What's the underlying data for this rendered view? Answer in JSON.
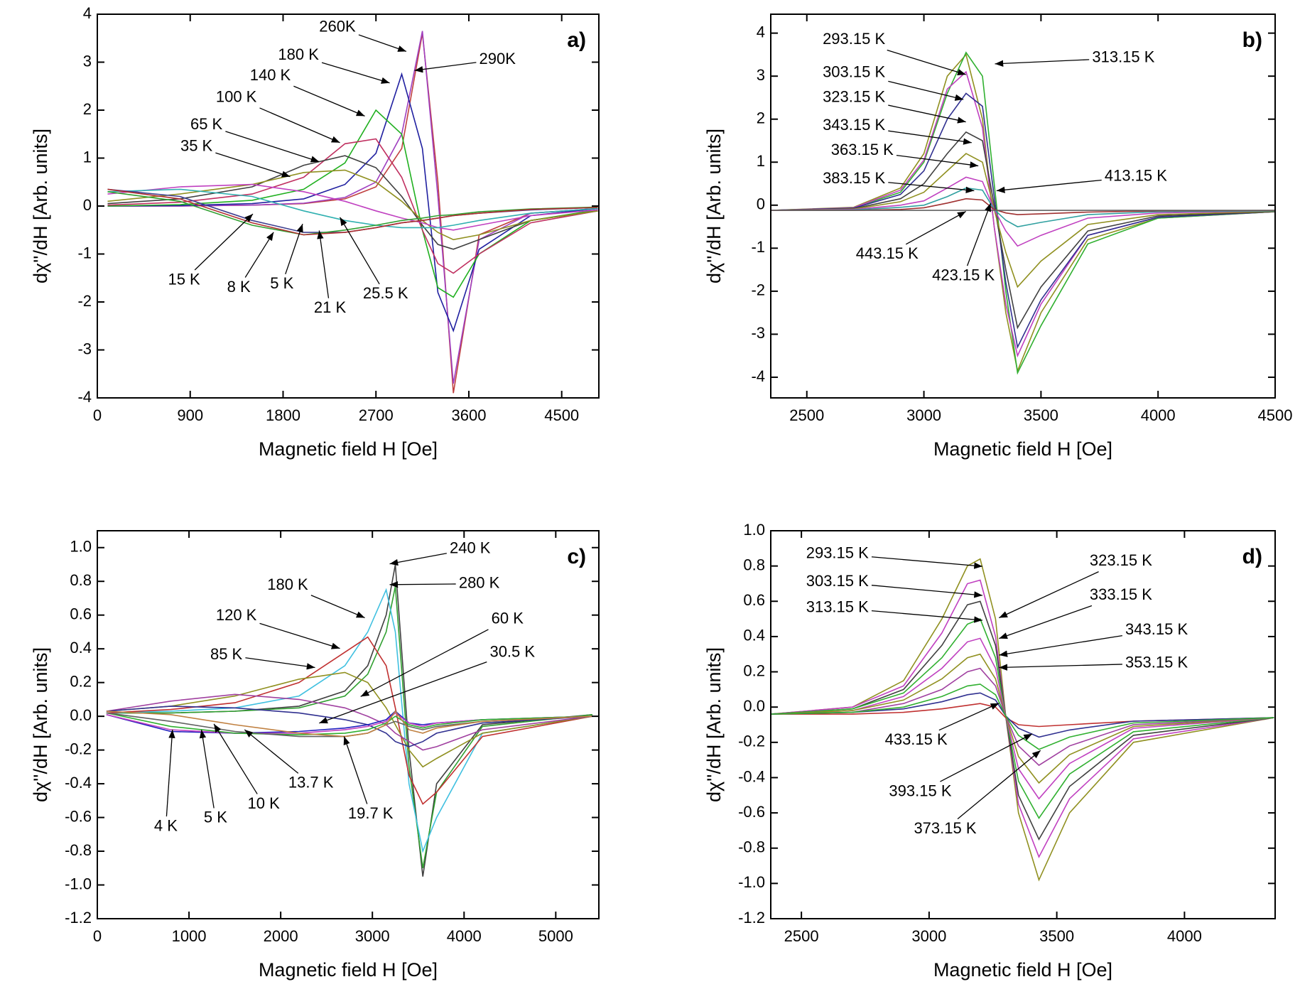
{
  "chart_data": [
    {
      "type": "line",
      "panel_label": "a)",
      "x_label": "Magnetic field H [Oe]",
      "y_label": "dχ''/dH [Arb. units]",
      "xlim": [
        0,
        4860
      ],
      "ylim": [
        -4,
        4
      ],
      "xticks": [
        0,
        900,
        1800,
        2700,
        3600,
        4500
      ],
      "yticks": [
        -4,
        -3,
        -2,
        -1,
        0,
        1,
        2,
        3,
        4
      ],
      "x": [
        100,
        800,
        1500,
        2000,
        2400,
        2700,
        2950,
        3150,
        3300,
        3450,
        3700,
        4200,
        4850
      ],
      "series": [
        {
          "name": "290K",
          "color": "#c04040",
          "values": [
            0,
            0,
            0.02,
            0.05,
            0.15,
            0.4,
            1.2,
            3.6,
            0.5,
            -3.9,
            -0.6,
            -0.15,
            -0.05
          ]
        },
        {
          "name": "260K",
          "color": "#a040c0",
          "values": [
            0,
            0,
            0.02,
            0.06,
            0.18,
            0.5,
            1.5,
            3.65,
            0.2,
            -3.7,
            -0.7,
            -0.15,
            -0.05
          ]
        },
        {
          "name": "180 K",
          "color": "#2020a0",
          "values": [
            0,
            0.01,
            0.05,
            0.15,
            0.45,
            1.1,
            2.75,
            1.2,
            -1.8,
            -2.6,
            -0.9,
            -0.2,
            -0.05
          ]
        },
        {
          "name": "140 K",
          "color": "#20b020",
          "values": [
            0,
            0.03,
            0.12,
            0.35,
            0.9,
            2.0,
            1.5,
            -0.5,
            -1.7,
            -1.9,
            -1.0,
            -0.3,
            -0.08
          ]
        },
        {
          "name": "100 K",
          "color": "#c03060",
          "values": [
            0.02,
            0.08,
            0.25,
            0.6,
            1.3,
            1.4,
            0.6,
            -0.5,
            -1.2,
            -1.4,
            -1.0,
            -0.35,
            -0.1
          ]
        },
        {
          "name": "65 K",
          "color": "#404040",
          "values": [
            0.05,
            0.15,
            0.4,
            0.85,
            1.05,
            0.8,
            0.2,
            -0.4,
            -0.8,
            -0.9,
            -0.7,
            -0.3,
            -0.1
          ]
        },
        {
          "name": "35 K",
          "color": "#909020",
          "values": [
            0.1,
            0.25,
            0.45,
            0.7,
            0.75,
            0.5,
            0.1,
            -0.3,
            -0.55,
            -0.7,
            -0.6,
            -0.3,
            -0.1
          ]
        },
        {
          "name": "25.5 K",
          "color": "#c040c0",
          "values": [
            0.25,
            0.4,
            0.45,
            0.3,
            0.1,
            -0.1,
            -0.25,
            -0.35,
            -0.45,
            -0.5,
            -0.4,
            -0.2,
            -0.08
          ]
        },
        {
          "name": "21 K",
          "color": "#30b0b0",
          "values": [
            0.3,
            0.35,
            0.2,
            -0.1,
            -0.3,
            -0.4,
            -0.45,
            -0.45,
            -0.45,
            -0.4,
            -0.3,
            -0.15,
            -0.05
          ]
        },
        {
          "name": "15 K",
          "color": "#404090",
          "values": [
            0.35,
            0.2,
            -0.3,
            -0.55,
            -0.55,
            -0.45,
            -0.35,
            -0.3,
            -0.25,
            -0.2,
            -0.15,
            -0.08,
            -0.03
          ]
        },
        {
          "name": "8 K",
          "color": "#30a030",
          "values": [
            0.3,
            0.1,
            -0.4,
            -0.6,
            -0.5,
            -0.4,
            -0.3,
            -0.25,
            -0.2,
            -0.18,
            -0.12,
            -0.06,
            -0.02
          ]
        },
        {
          "name": "5 K",
          "color": "#b03030",
          "values": [
            0.35,
            0.15,
            -0.35,
            -0.6,
            -0.55,
            -0.45,
            -0.35,
            -0.3,
            -0.25,
            -0.2,
            -0.15,
            -0.07,
            -0.03
          ]
        }
      ]
    },
    {
      "type": "line",
      "panel_label": "b)",
      "x_label": "Magnetic field H [Oe]",
      "y_label": "dχ''/dH [Arb. units]",
      "xlim": [
        2346,
        4500
      ],
      "ylim": [
        -4.48,
        4.44
      ],
      "xticks": [
        2500,
        3000,
        3500,
        4000,
        4500
      ],
      "yticks": [
        -4,
        -3,
        -2,
        -1,
        0,
        1,
        2,
        3,
        4
      ],
      "x": [
        2350,
        2700,
        2900,
        3000,
        3100,
        3180,
        3250,
        3300,
        3350,
        3400,
        3500,
        3700,
        4000,
        4500
      ],
      "series": [
        {
          "name": "293.15 K",
          "color": "#909020",
          "values": [
            -0.12,
            -0.05,
            0.4,
            1.2,
            3.0,
            3.5,
            2.0,
            -0.5,
            -2.5,
            -3.85,
            -2.5,
            -0.8,
            -0.3,
            -0.15
          ]
        },
        {
          "name": "313.15 K",
          "color": "#30b030",
          "values": [
            -0.12,
            -0.06,
            0.3,
            1.0,
            2.6,
            3.55,
            3.0,
            0.5,
            -2.0,
            -3.9,
            -2.8,
            -0.9,
            -0.3,
            -0.15
          ]
        },
        {
          "name": "303.15 K",
          "color": "#c040c0",
          "values": [
            -0.12,
            -0.06,
            0.35,
            1.05,
            2.7,
            3.1,
            1.8,
            -0.5,
            -2.3,
            -3.5,
            -2.3,
            -0.7,
            -0.28,
            -0.15
          ]
        },
        {
          "name": "323.15 K",
          "color": "#303090",
          "values": [
            -0.12,
            -0.07,
            0.25,
            0.8,
            2.0,
            2.6,
            2.3,
            0.2,
            -1.8,
            -3.3,
            -2.2,
            -0.7,
            -0.28,
            -0.15
          ]
        },
        {
          "name": "343.15 K",
          "color": "#404040",
          "values": [
            -0.12,
            -0.08,
            0.15,
            0.5,
            1.2,
            1.7,
            1.5,
            0,
            -1.5,
            -2.85,
            -1.9,
            -0.6,
            -0.25,
            -0.15
          ]
        },
        {
          "name": "363.15 K",
          "color": "#909020",
          "values": [
            -0.12,
            -0.09,
            0.08,
            0.3,
            0.8,
            1.2,
            1.0,
            -0.1,
            -1.1,
            -1.9,
            -1.3,
            -0.45,
            -0.22,
            -0.14
          ]
        },
        {
          "name": "383.15 K",
          "color": "#c040c0",
          "values": [
            -0.12,
            -0.1,
            0,
            0.1,
            0.4,
            0.65,
            0.55,
            -0.1,
            -0.6,
            -0.95,
            -0.7,
            -0.3,
            -0.18,
            -0.13
          ]
        },
        {
          "name": "413.15 K",
          "color": "#30a0a0",
          "values": [
            -0.12,
            -0.11,
            -0.05,
            0,
            0.2,
            0.4,
            0.35,
            -0.1,
            -0.35,
            -0.5,
            -0.4,
            -0.22,
            -0.15,
            -0.13
          ]
        },
        {
          "name": "423.15 K",
          "color": "#a03030",
          "values": [
            -0.12,
            -0.12,
            -0.1,
            -0.06,
            0.05,
            0.15,
            0.12,
            -0.1,
            -0.18,
            -0.22,
            -0.2,
            -0.16,
            -0.13,
            -0.12
          ]
        },
        {
          "name": "443.15 K",
          "color": "#606060",
          "values": [
            -0.12,
            -0.12,
            -0.12,
            -0.12,
            -0.12,
            -0.12,
            -0.12,
            -0.12,
            -0.12,
            -0.12,
            -0.12,
            -0.12,
            -0.12,
            -0.12
          ]
        }
      ]
    },
    {
      "type": "line",
      "panel_label": "c)",
      "x_label": "Magnetic field H [Oe]",
      "y_label": "dχ''/dH [Arb. units]",
      "xlim": [
        0,
        5470
      ],
      "ylim": [
        -1.2,
        1.1
      ],
      "xticks": [
        0,
        1000,
        2000,
        3000,
        4000,
        5000
      ],
      "yticks": [
        -1.2,
        {
          "value": -1,
          "label": "-1.0"
        },
        -0.8,
        -0.6,
        -0.4,
        -0.2,
        {
          "value": 0,
          "label": "0.0"
        },
        0.2,
        0.4,
        0.6,
        0.8,
        {
          "value": 1,
          "label": "1.0"
        }
      ],
      "x": [
        100,
        800,
        1500,
        2200,
        2700,
        2950,
        3150,
        3250,
        3400,
        3550,
        3700,
        4200,
        5400
      ],
      "series": [
        {
          "name": "240 K",
          "color": "#404040",
          "values": [
            0.02,
            0.02,
            0.03,
            0.06,
            0.15,
            0.3,
            0.6,
            0.9,
            -0.2,
            -0.95,
            -0.4,
            -0.05,
            0.01
          ]
        },
        {
          "name": "280 K",
          "color": "#30a030",
          "values": [
            0.02,
            0.02,
            0.03,
            0.05,
            0.12,
            0.25,
            0.5,
            0.77,
            -0.3,
            -0.9,
            -0.45,
            -0.06,
            0.01
          ]
        },
        {
          "name": "180 K",
          "color": "#40c0e0",
          "values": [
            0.02,
            0.03,
            0.05,
            0.12,
            0.3,
            0.5,
            0.75,
            0.5,
            -0.4,
            -0.8,
            -0.6,
            -0.1,
            0
          ]
        },
        {
          "name": "120 K",
          "color": "#c03030",
          "values": [
            0.02,
            0.04,
            0.08,
            0.2,
            0.38,
            0.47,
            0.3,
            0.05,
            -0.35,
            -0.52,
            -0.45,
            -0.12,
            0
          ]
        },
        {
          "name": "85 K",
          "color": "#909020",
          "values": [
            0.03,
            0.06,
            0.12,
            0.22,
            0.26,
            0.2,
            0.05,
            -0.05,
            -0.2,
            -0.3,
            -0.25,
            -0.1,
            0
          ]
        },
        {
          "name": "60 K",
          "color": "#a040a0",
          "values": [
            0.03,
            0.09,
            0.13,
            0.1,
            0.05,
            0,
            -0.05,
            -0.1,
            -0.15,
            -0.2,
            -0.18,
            -0.08,
            0
          ]
        },
        {
          "name": "30.5 K",
          "color": "#303090",
          "values": [
            0.03,
            0.06,
            0.05,
            0.02,
            -0.02,
            -0.05,
            -0.1,
            -0.15,
            -0.18,
            -0.15,
            -0.1,
            -0.04,
            0
          ]
        },
        {
          "name": "4 K",
          "color": "#2020c0",
          "values": [
            0.01,
            -0.09,
            -0.1,
            -0.09,
            -0.07,
            -0.05,
            -0.02,
            0.03,
            -0.04,
            -0.05,
            -0.04,
            -0.02,
            0
          ]
        },
        {
          "name": "5 K",
          "color": "#c040c0",
          "values": [
            0.01,
            -0.08,
            -0.1,
            -0.1,
            -0.08,
            -0.06,
            -0.03,
            0.02,
            -0.04,
            -0.06,
            -0.04,
            -0.02,
            0
          ]
        },
        {
          "name": "10 K",
          "color": "#30b030",
          "values": [
            0.02,
            -0.06,
            -0.1,
            -0.11,
            -0.1,
            -0.08,
            -0.04,
            0.0,
            -0.05,
            -0.07,
            -0.05,
            -0.02,
            0
          ]
        },
        {
          "name": "13.7 K",
          "color": "#606060",
          "values": [
            0.02,
            -0.03,
            -0.09,
            -0.12,
            -0.12,
            -0.1,
            -0.05,
            -0.03,
            -0.06,
            -0.08,
            -0.06,
            -0.03,
            0
          ]
        },
        {
          "name": "19.7 K",
          "color": "#c08040",
          "values": [
            0.03,
            0.01,
            -0.05,
            -0.1,
            -0.12,
            -0.1,
            -0.05,
            0.03,
            -0.08,
            -0.1,
            -0.07,
            -0.03,
            0
          ]
        }
      ]
    },
    {
      "type": "line",
      "panel_label": "d)",
      "x_label": "Magnetic field H [Oe]",
      "y_label": "dχ''/dH [Arb. units]",
      "xlim": [
        2380,
        4355
      ],
      "ylim": [
        -1.2,
        1
      ],
      "xticks": [
        2500,
        3000,
        3500,
        4000
      ],
      "yticks": [
        -1.2,
        {
          "value": -1,
          "label": "-1.0"
        },
        -0.8,
        -0.6,
        -0.4,
        -0.2,
        {
          "value": 0,
          "label": "0.0"
        },
        0.2,
        0.4,
        0.6,
        0.8,
        {
          "value": 1,
          "label": "1.0"
        }
      ],
      "x": [
        2380,
        2700,
        2900,
        3050,
        3150,
        3200,
        3260,
        3300,
        3350,
        3430,
        3550,
        3800,
        4350
      ],
      "series": [
        {
          "name": "293.15 K",
          "color": "#909020",
          "values": [
            -0.04,
            0.0,
            0.15,
            0.5,
            0.8,
            0.84,
            0.5,
            -0.05,
            -0.6,
            -0.98,
            -0.6,
            -0.2,
            -0.06
          ]
        },
        {
          "name": "303.15 K",
          "color": "#c040c0",
          "values": [
            -0.04,
            0,
            0.12,
            0.42,
            0.7,
            0.72,
            0.4,
            -0.05,
            -0.55,
            -0.85,
            -0.52,
            -0.18,
            -0.06
          ]
        },
        {
          "name": "313.15 K",
          "color": "#404040",
          "values": [
            -0.04,
            -0.01,
            0.1,
            0.35,
            0.58,
            0.6,
            0.35,
            -0.05,
            -0.5,
            -0.75,
            -0.45,
            -0.16,
            -0.06
          ]
        },
        {
          "name": "323.15 K",
          "color": "#30b030",
          "values": [
            -0.04,
            -0.01,
            0.08,
            0.28,
            0.47,
            0.5,
            0.28,
            -0.05,
            -0.42,
            -0.63,
            -0.38,
            -0.14,
            -0.06
          ]
        },
        {
          "name": "333.15 K",
          "color": "#c040c0",
          "values": [
            -0.04,
            -0.02,
            0.06,
            0.22,
            0.37,
            0.39,
            0.22,
            -0.05,
            -0.35,
            -0.52,
            -0.32,
            -0.12,
            -0.06
          ]
        },
        {
          "name": "343.15 K",
          "color": "#909020",
          "values": [
            -0.04,
            -0.02,
            0.04,
            0.16,
            0.28,
            0.3,
            0.16,
            -0.05,
            -0.28,
            -0.43,
            -0.27,
            -0.11,
            -0.06
          ]
        },
        {
          "name": "353.15 K",
          "color": "#a040a0",
          "values": [
            -0.04,
            -0.03,
            0.02,
            0.1,
            0.2,
            0.22,
            0.12,
            -0.05,
            -0.22,
            -0.33,
            -0.22,
            -0.1,
            -0.06
          ]
        },
        {
          "name": "433.15 K",
          "color": "#c03030",
          "values": [
            -0.04,
            -0.04,
            -0.03,
            -0.01,
            0.01,
            0.02,
            0,
            -0.06,
            -0.1,
            -0.11,
            -0.1,
            -0.08,
            -0.06
          ]
        },
        {
          "name": "393.15 K",
          "color": "#303090",
          "values": [
            -0.04,
            -0.03,
            -0.01,
            0.03,
            0.07,
            0.08,
            0.04,
            -0.05,
            -0.12,
            -0.17,
            -0.13,
            -0.08,
            -0.06
          ]
        },
        {
          "name": "373.15 K",
          "color": "#30b030",
          "values": [
            -0.04,
            -0.03,
            0,
            0.06,
            0.12,
            0.13,
            0.07,
            -0.05,
            -0.16,
            -0.24,
            -0.17,
            -0.09,
            -0.06
          ]
        }
      ]
    }
  ]
}
